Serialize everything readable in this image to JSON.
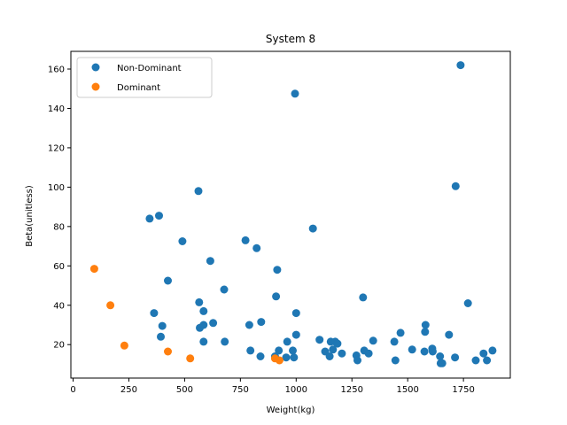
{
  "chart_data": {
    "type": "scatter",
    "title": "System 8",
    "xlabel": "Weight(kg)",
    "ylabel": "Beta(unitless)",
    "xlim": [
      -10,
      1960
    ],
    "ylim": [
      3,
      169
    ],
    "xticks": [
      0,
      250,
      500,
      750,
      1000,
      1250,
      1500,
      1750
    ],
    "yticks": [
      20,
      40,
      60,
      80,
      100,
      120,
      140,
      160
    ],
    "grid": false,
    "legend": "top-left",
    "series": [
      {
        "name": "Non-Dominant",
        "color": "#1f77b4",
        "points": [
          [
            343,
            84
          ],
          [
            385,
            85.5
          ],
          [
            562,
            98
          ],
          [
            490,
            72.5
          ],
          [
            773,
            73
          ],
          [
            823,
            69
          ],
          [
            1075,
            79
          ],
          [
            995,
            147.5
          ],
          [
            1715,
            100.5
          ],
          [
            1737,
            162
          ],
          [
            615,
            62.5
          ],
          [
            425,
            52.5
          ],
          [
            915,
            58
          ],
          [
            677,
            48
          ],
          [
            1300,
            44
          ],
          [
            1770,
            41
          ],
          [
            565,
            41.5
          ],
          [
            585,
            37
          ],
          [
            363,
            36
          ],
          [
            1000,
            36
          ],
          [
            910,
            44.5
          ],
          [
            628,
            31
          ],
          [
            843,
            31.5
          ],
          [
            400,
            29.5
          ],
          [
            568,
            28.5
          ],
          [
            585,
            30
          ],
          [
            790,
            30
          ],
          [
            393,
            24
          ],
          [
            585,
            21.5
          ],
          [
            680,
            21.5
          ],
          [
            795,
            17
          ],
          [
            840,
            14
          ],
          [
            905,
            14
          ],
          [
            922,
            17
          ],
          [
            960,
            21.5
          ],
          [
            955,
            13.5
          ],
          [
            985,
            17
          ],
          [
            990,
            13.5
          ],
          [
            1000,
            25
          ],
          [
            1105,
            22.5
          ],
          [
            1130,
            16.5
          ],
          [
            1155,
            21.5
          ],
          [
            1165,
            17.5
          ],
          [
            1175,
            21.5
          ],
          [
            1185,
            20.5
          ],
          [
            1205,
            15.5
          ],
          [
            1150,
            14
          ],
          [
            1270,
            14.5
          ],
          [
            1275,
            12
          ],
          [
            1305,
            17
          ],
          [
            1325,
            15.5
          ],
          [
            1345,
            22
          ],
          [
            1440,
            21.5
          ],
          [
            1445,
            12
          ],
          [
            1468,
            26
          ],
          [
            1520,
            17.5
          ],
          [
            1575,
            16.5
          ],
          [
            1580,
            30
          ],
          [
            1578,
            26.5
          ],
          [
            1610,
            18
          ],
          [
            1612,
            16.5
          ],
          [
            1645,
            14
          ],
          [
            1648,
            10.5
          ],
          [
            1655,
            10.5
          ],
          [
            1685,
            25
          ],
          [
            1712,
            13.5
          ],
          [
            1805,
            12
          ],
          [
            1840,
            15.5
          ],
          [
            1855,
            12
          ],
          [
            1880,
            17
          ]
        ]
      },
      {
        "name": "Dominant",
        "color": "#ff7f0e",
        "points": [
          [
            95,
            58.5
          ],
          [
            167,
            40
          ],
          [
            230,
            19.5
          ],
          [
            425,
            16.5
          ],
          [
            525,
            13
          ],
          [
            905,
            13
          ],
          [
            925,
            12
          ]
        ]
      }
    ]
  }
}
